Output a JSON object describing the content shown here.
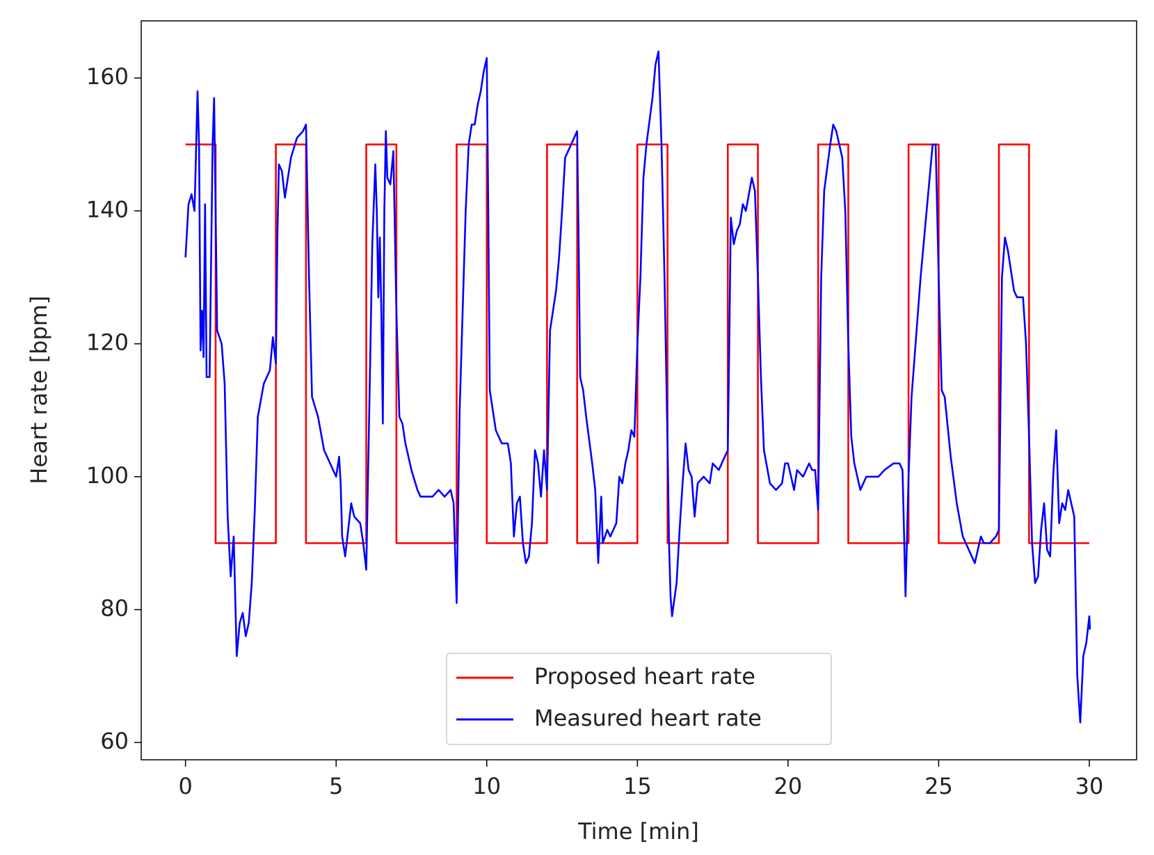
{
  "chart_data": {
    "type": "line",
    "xlabel": "Time [min]",
    "ylabel": "Heart rate [bpm]",
    "xlim": [
      -1.47,
      31.57
    ],
    "ylim": [
      57.4,
      168.6
    ],
    "xticks": [
      0,
      5,
      10,
      15,
      20,
      25,
      30
    ],
    "yticks": [
      60,
      80,
      100,
      120,
      140,
      160
    ],
    "legend": "lower center",
    "series": [
      {
        "name": "Proposed heart rate",
        "color": "#ff0000",
        "x": [
          0,
          1,
          1,
          3,
          3,
          4,
          4,
          6,
          6,
          7,
          7,
          9,
          9,
          10,
          10,
          12,
          12,
          13,
          13,
          15,
          15,
          16,
          16,
          18,
          18,
          19,
          19,
          21,
          21,
          22,
          22,
          24,
          24,
          25,
          25,
          27,
          27,
          28,
          28,
          30
        ],
        "values": [
          150,
          150,
          90,
          90,
          150,
          150,
          90,
          90,
          150,
          150,
          90,
          90,
          150,
          150,
          90,
          90,
          150,
          150,
          90,
          90,
          150,
          150,
          90,
          90,
          150,
          150,
          90,
          90,
          150,
          150,
          90,
          90,
          150,
          150,
          90,
          90,
          150,
          150,
          90,
          90
        ]
      },
      {
        "name": "Measured heart rate",
        "color": "#0000ff",
        "x": [
          0,
          0.1,
          0.2,
          0.3,
          0.4,
          0.45,
          0.5,
          0.55,
          0.6,
          0.65,
          0.7,
          0.8,
          0.9,
          0.95,
          1.0,
          1.05,
          1.2,
          1.3,
          1.4,
          1.5,
          1.6,
          1.7,
          1.8,
          1.9,
          2.0,
          2.1,
          2.2,
          2.3,
          2.4,
          2.6,
          2.8,
          2.9,
          3.0,
          3.05,
          3.1,
          3.2,
          3.3,
          3.5,
          3.7,
          3.9,
          4.0,
          4.1,
          4.2,
          4.4,
          4.6,
          4.8,
          5.0,
          5.1,
          5.15,
          5.2,
          5.3,
          5.4,
          5.5,
          5.6,
          5.8,
          5.9,
          6.0,
          6.1,
          6.2,
          6.3,
          6.35,
          6.4,
          6.45,
          6.5,
          6.55,
          6.6,
          6.65,
          6.7,
          6.8,
          6.9,
          7.0,
          7.1,
          7.2,
          7.3,
          7.5,
          7.7,
          7.8,
          8.0,
          8.2,
          8.4,
          8.6,
          8.8,
          8.9,
          9.0,
          9.1,
          9.2,
          9.3,
          9.4,
          9.5,
          9.6,
          9.7,
          9.8,
          9.9,
          10.0,
          10.05,
          10.1,
          10.3,
          10.5,
          10.7,
          10.8,
          10.9,
          11.0,
          11.1,
          11.2,
          11.3,
          11.4,
          11.5,
          11.6,
          11.7,
          11.8,
          11.9,
          12.0,
          12.1,
          12.3,
          12.4,
          12.5,
          12.6,
          12.8,
          12.9,
          13.0,
          13.05,
          13.1,
          13.2,
          13.3,
          13.5,
          13.6,
          13.7,
          13.8,
          13.85,
          14.0,
          14.1,
          14.3,
          14.4,
          14.5,
          14.6,
          14.7,
          14.8,
          14.9,
          15.0,
          15.1,
          15.2,
          15.3,
          15.5,
          15.6,
          15.7,
          15.8,
          15.9,
          16.0,
          16.05,
          16.1,
          16.15,
          16.3,
          16.4,
          16.5,
          16.6,
          16.7,
          16.8,
          16.9,
          17.0,
          17.2,
          17.4,
          17.5,
          17.7,
          17.9,
          18.0,
          18.05,
          18.1,
          18.2,
          18.3,
          18.4,
          18.5,
          18.6,
          18.8,
          18.9,
          19.0,
          19.1,
          19.2,
          19.4,
          19.6,
          19.8,
          19.9,
          20.0,
          20.1,
          20.2,
          20.3,
          20.5,
          20.7,
          20.8,
          20.9,
          21.0,
          21.1,
          21.2,
          21.4,
          21.5,
          21.6,
          21.8,
          21.9,
          22.0,
          22.1,
          22.2,
          22.3,
          22.4,
          22.6,
          22.8,
          23.0,
          23.2,
          23.5,
          23.7,
          23.8,
          23.9,
          24.0,
          24.1,
          24.2,
          24.4,
          24.6,
          24.7,
          24.8,
          24.9,
          25.0,
          25.1,
          25.2,
          25.4,
          25.6,
          25.8,
          26.0,
          26.1,
          26.2,
          26.3,
          26.4,
          26.5,
          26.7,
          26.9,
          27.0,
          27.1,
          27.2,
          27.3,
          27.4,
          27.5,
          27.6,
          27.8,
          27.9,
          28.0,
          28.1,
          28.2,
          28.3,
          28.4,
          28.5,
          28.6,
          28.7,
          28.8,
          28.9,
          29.0,
          29.1,
          29.2,
          29.3,
          29.4,
          29.5,
          29.6,
          29.7,
          29.8,
          29.9,
          30.0,
          30.02
        ],
        "values": [
          133,
          141,
          142.5,
          140,
          158,
          150,
          119,
          125,
          118,
          141,
          115,
          115,
          150,
          157,
          140,
          122,
          120,
          114,
          94,
          85,
          91,
          73,
          78,
          79.5,
          76,
          78,
          84,
          95,
          109,
          114,
          116,
          121,
          117,
          136,
          147,
          146,
          142,
          148,
          151,
          152,
          153,
          130,
          112,
          109,
          104,
          102,
          100,
          103,
          99,
          91,
          88,
          92,
          96,
          94,
          93,
          90,
          86,
          110,
          135,
          147,
          140,
          127,
          136,
          125,
          108,
          140,
          152,
          145,
          144,
          149,
          125,
          109,
          108,
          105,
          101,
          98,
          97,
          97,
          97,
          98,
          97,
          98,
          96,
          81,
          110,
          125,
          140,
          150,
          153,
          153,
          156,
          158,
          161,
          163,
          140,
          113,
          107,
          105,
          105,
          102,
          91,
          96,
          97,
          90,
          87,
          88,
          93,
          104,
          102,
          97,
          104,
          98,
          122,
          128,
          133,
          140,
          148,
          150,
          151,
          152,
          135,
          115,
          113,
          109,
          102,
          98,
          87,
          97,
          90,
          92,
          91,
          93,
          100,
          99,
          102,
          104,
          107,
          106,
          120,
          130,
          145,
          150,
          157,
          162,
          164,
          150,
          130,
          105,
          90,
          82,
          79,
          84,
          92,
          99,
          105,
          101,
          100,
          94,
          99,
          100,
          99,
          102,
          101,
          103,
          104,
          120,
          139,
          135,
          137,
          138,
          141,
          140,
          145,
          143,
          130,
          115,
          104,
          99,
          98,
          99,
          102,
          102,
          100,
          98,
          101,
          100,
          102,
          101,
          101,
          95,
          130,
          143,
          150,
          153,
          152,
          148,
          140,
          120,
          106,
          102,
          100,
          98,
          100,
          100,
          100,
          101,
          102,
          102,
          101,
          82,
          100,
          112,
          118,
          130,
          140,
          145,
          150,
          150,
          130,
          113,
          112,
          103,
          96,
          91,
          89,
          88,
          87,
          89,
          91,
          90,
          90,
          91,
          92,
          130,
          136,
          134,
          131,
          128,
          127,
          127,
          120,
          106,
          90,
          84,
          85,
          92,
          96,
          89,
          88,
          100,
          107,
          93,
          96,
          95,
          98,
          96,
          94,
          70,
          63,
          73,
          75,
          79,
          77
        ]
      }
    ]
  }
}
